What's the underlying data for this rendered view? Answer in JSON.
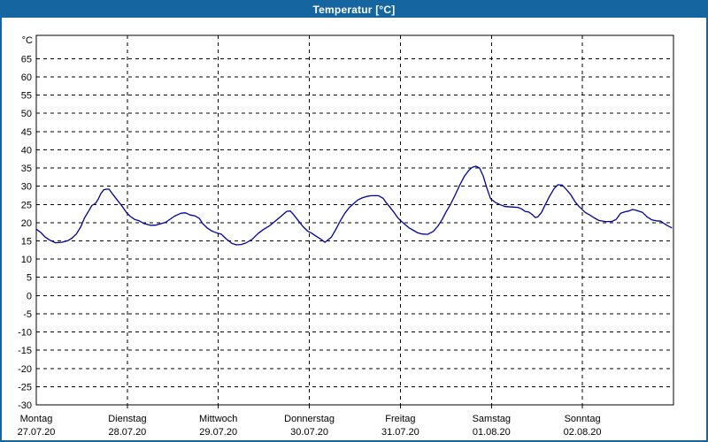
{
  "window": {
    "title": "Temperatur [°C]",
    "title_bar_color": "#1565A0",
    "border_color": "#1565A0"
  },
  "chart_data": {
    "type": "line",
    "title": "Temperatur [°C]",
    "y_unit_label": "°C",
    "y_axis": {
      "min": -30,
      "max": 71.4,
      "tick_start": -30,
      "tick_end": 65,
      "tick_step": 5,
      "gridlines": "dashed"
    },
    "x_axis": {
      "span_days": 7,
      "days": [
        {
          "name": "Montag",
          "date": "27.07.20"
        },
        {
          "name": "Dienstag",
          "date": "28.07.20"
        },
        {
          "name": "Mittwoch",
          "date": "29.07.20"
        },
        {
          "name": "Donnerstag",
          "date": "30.07.20"
        },
        {
          "name": "Freitag",
          "date": "31.07.20"
        },
        {
          "name": "Samstag",
          "date": "01.08.20"
        },
        {
          "name": "Sonntag",
          "date": "02.08.20"
        }
      ]
    },
    "legend": "none",
    "colors": {
      "line": "#0000A0",
      "grid": "#000000",
      "axis": "#000000",
      "background": "#FFFFFF",
      "text": "#000000"
    },
    "series": [
      {
        "name": "Temperatur",
        "unit": "°C",
        "points": [
          [
            0.0,
            18.2
          ],
          [
            0.05,
            17.3
          ],
          [
            0.1,
            16.0
          ],
          [
            0.15,
            15.2
          ],
          [
            0.21,
            14.5
          ],
          [
            0.28,
            14.6
          ],
          [
            0.35,
            15.1
          ],
          [
            0.39,
            15.7
          ],
          [
            0.44,
            16.9
          ],
          [
            0.49,
            18.9
          ],
          [
            0.53,
            21.3
          ],
          [
            0.58,
            23.4
          ],
          [
            0.61,
            24.7
          ],
          [
            0.65,
            25.3
          ],
          [
            0.68,
            26.4
          ],
          [
            0.71,
            28.0
          ],
          [
            0.74,
            29.0
          ],
          [
            0.77,
            29.2
          ],
          [
            0.8,
            29.2
          ],
          [
            0.84,
            27.8
          ],
          [
            0.89,
            26.2
          ],
          [
            0.94,
            24.6
          ],
          [
            0.99,
            22.8
          ],
          [
            1.03,
            21.8
          ],
          [
            1.08,
            20.9
          ],
          [
            1.13,
            20.5
          ],
          [
            1.18,
            19.8
          ],
          [
            1.25,
            19.3
          ],
          [
            1.31,
            19.3
          ],
          [
            1.42,
            20.1
          ],
          [
            1.52,
            21.8
          ],
          [
            1.59,
            22.6
          ],
          [
            1.64,
            22.7
          ],
          [
            1.69,
            22.1
          ],
          [
            1.74,
            21.9
          ],
          [
            1.79,
            21.2
          ],
          [
            1.83,
            19.7
          ],
          [
            1.88,
            18.5
          ],
          [
            1.93,
            17.7
          ],
          [
            1.99,
            17.1
          ],
          [
            2.03,
            16.9
          ],
          [
            2.08,
            15.7
          ],
          [
            2.15,
            14.3
          ],
          [
            2.2,
            13.9
          ],
          [
            2.25,
            14.0
          ],
          [
            2.3,
            14.4
          ],
          [
            2.37,
            15.4
          ],
          [
            2.44,
            17.1
          ],
          [
            2.5,
            18.2
          ],
          [
            2.56,
            19.1
          ],
          [
            2.63,
            20.5
          ],
          [
            2.69,
            21.8
          ],
          [
            2.75,
            23.1
          ],
          [
            2.79,
            23.2
          ],
          [
            2.83,
            22.1
          ],
          [
            2.88,
            20.5
          ],
          [
            2.93,
            18.9
          ],
          [
            2.98,
            17.7
          ],
          [
            3.02,
            17.2
          ],
          [
            3.08,
            16.2
          ],
          [
            3.13,
            15.4
          ],
          [
            3.17,
            14.6
          ],
          [
            3.24,
            16.0
          ],
          [
            3.29,
            18.1
          ],
          [
            3.34,
            20.5
          ],
          [
            3.39,
            22.6
          ],
          [
            3.44,
            24.2
          ],
          [
            3.49,
            25.3
          ],
          [
            3.53,
            26.2
          ],
          [
            3.58,
            26.8
          ],
          [
            3.63,
            27.2
          ],
          [
            3.68,
            27.4
          ],
          [
            3.76,
            27.4
          ],
          [
            3.81,
            26.7
          ],
          [
            3.84,
            25.6
          ],
          [
            3.88,
            24.4
          ],
          [
            3.93,
            22.8
          ],
          [
            3.97,
            21.4
          ],
          [
            4.0,
            20.6
          ],
          [
            4.05,
            19.5
          ],
          [
            4.1,
            18.5
          ],
          [
            4.15,
            17.8
          ],
          [
            4.19,
            17.2
          ],
          [
            4.24,
            16.9
          ],
          [
            4.3,
            16.8
          ],
          [
            4.36,
            17.6
          ],
          [
            4.41,
            19.0
          ],
          [
            4.46,
            20.9
          ],
          [
            4.5,
            22.9
          ],
          [
            4.55,
            25.0
          ],
          [
            4.6,
            27.5
          ],
          [
            4.65,
            30.2
          ],
          [
            4.7,
            32.6
          ],
          [
            4.75,
            34.3
          ],
          [
            4.79,
            35.2
          ],
          [
            4.83,
            35.5
          ],
          [
            4.87,
            35.0
          ],
          [
            4.91,
            32.8
          ],
          [
            4.95,
            29.5
          ],
          [
            4.99,
            26.6
          ],
          [
            5.04,
            25.6
          ],
          [
            5.09,
            25.0
          ],
          [
            5.15,
            24.4
          ],
          [
            5.23,
            24.3
          ],
          [
            5.29,
            24.2
          ],
          [
            5.33,
            23.8
          ],
          [
            5.37,
            23.1
          ],
          [
            5.41,
            22.9
          ],
          [
            5.45,
            22.2
          ],
          [
            5.48,
            21.4
          ],
          [
            5.51,
            21.6
          ],
          [
            5.55,
            22.8
          ],
          [
            5.59,
            24.9
          ],
          [
            5.64,
            27.3
          ],
          [
            5.69,
            29.4
          ],
          [
            5.73,
            30.4
          ],
          [
            5.78,
            30.3
          ],
          [
            5.82,
            29.2
          ],
          [
            5.87,
            27.7
          ],
          [
            5.92,
            25.7
          ],
          [
            5.96,
            24.5
          ],
          [
            5.99,
            23.8
          ],
          [
            6.03,
            22.8
          ],
          [
            6.08,
            22.1
          ],
          [
            6.13,
            21.3
          ],
          [
            6.18,
            20.6
          ],
          [
            6.25,
            20.3
          ],
          [
            6.32,
            20.3
          ],
          [
            6.37,
            20.9
          ],
          [
            6.42,
            22.6
          ],
          [
            6.47,
            23.0
          ],
          [
            6.51,
            23.2
          ],
          [
            6.55,
            23.6
          ],
          [
            6.59,
            23.4
          ],
          [
            6.66,
            22.8
          ],
          [
            6.71,
            21.6
          ],
          [
            6.76,
            20.8
          ],
          [
            6.81,
            20.5
          ],
          [
            6.86,
            20.4
          ],
          [
            6.9,
            19.7
          ],
          [
            6.94,
            19.1
          ],
          [
            6.98,
            18.6
          ]
        ]
      }
    ]
  }
}
